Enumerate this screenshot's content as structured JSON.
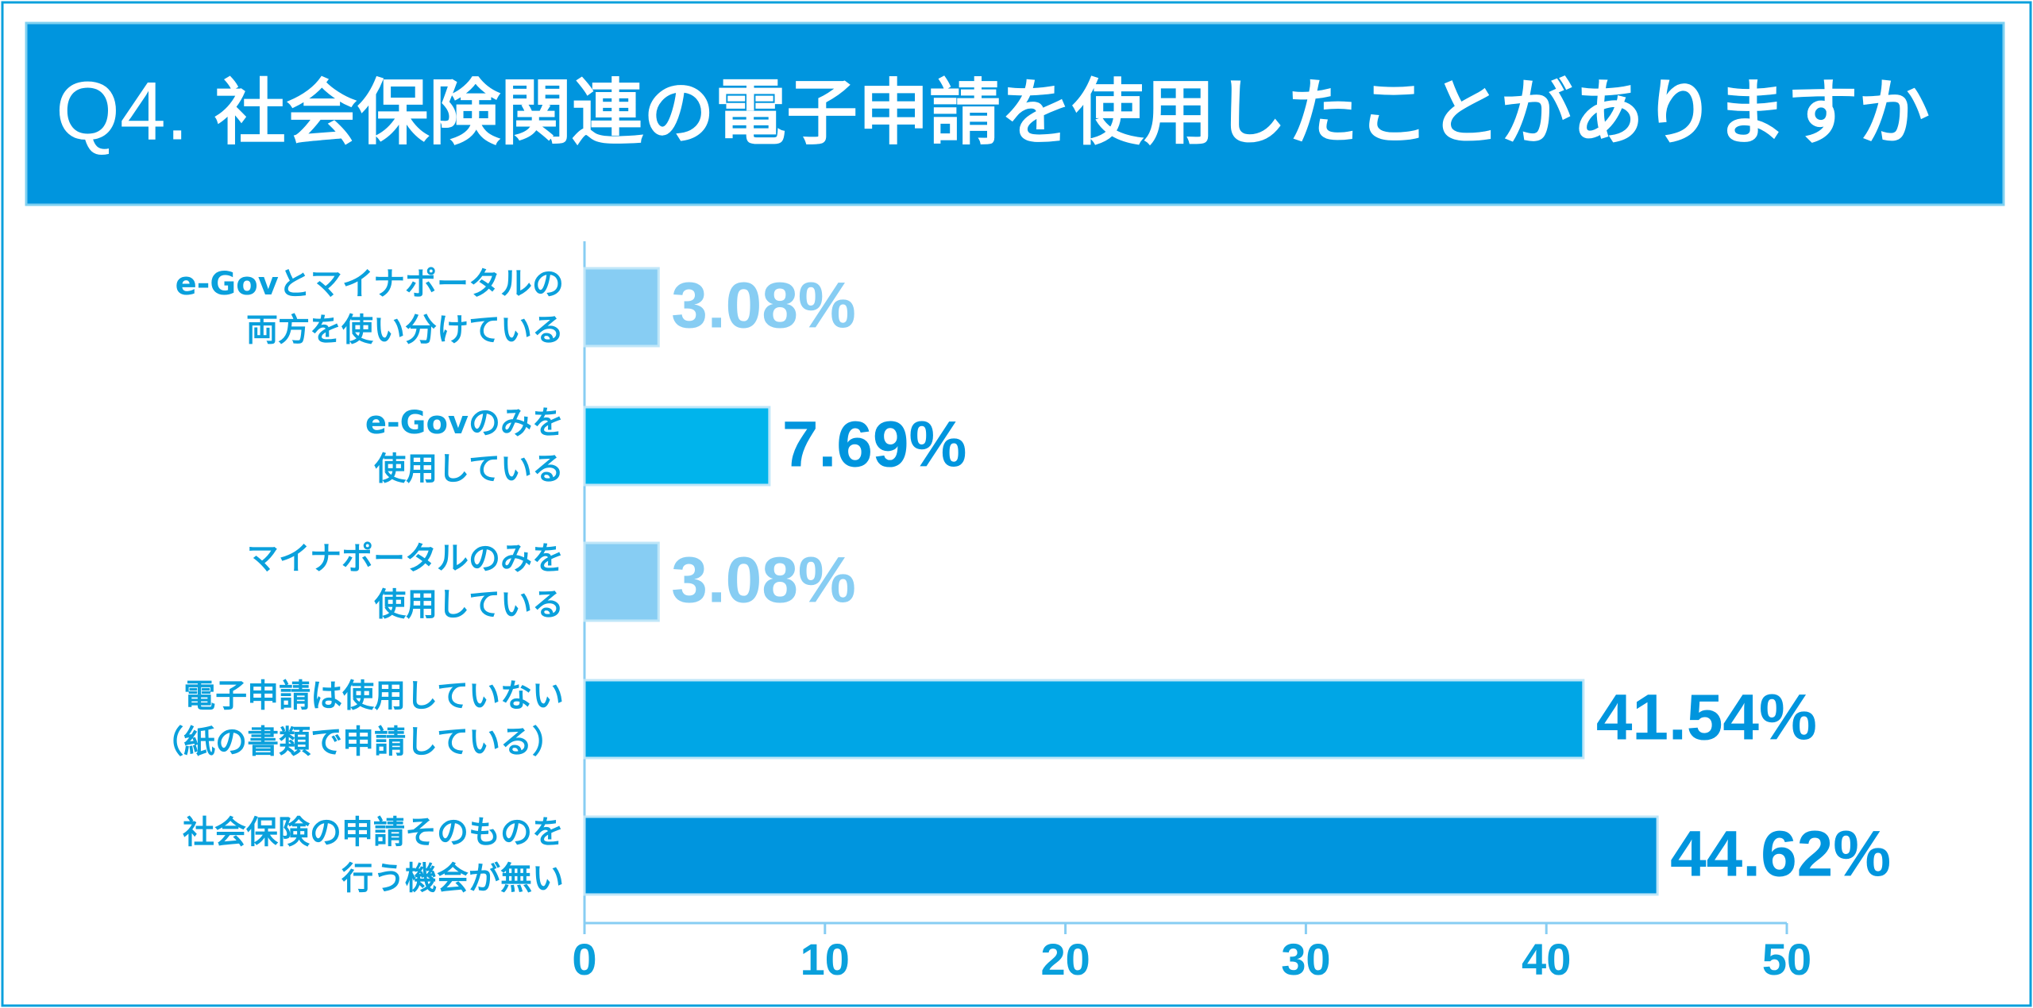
{
  "chart_data": {
    "type": "barh",
    "question_number": "Q4.",
    "title": "社会保険関連の電子申請を使用したことがありますか",
    "categories": [
      "e-Govとマイナポータルの\n両方を使い分けている",
      "e-Govのみを\n使用している",
      "マイナポータルのみを\n使用している",
      "電子申請は使用していない\n（紙の書類で申請している）",
      "社会保険の申請そのものを\n行う機会が無い"
    ],
    "values": [
      3.08,
      7.69,
      3.08,
      41.54,
      44.62
    ],
    "value_labels": [
      "3.08%",
      "7.69%",
      "3.08%",
      "41.54%",
      "44.62%"
    ],
    "colors": [
      "#87cdf3",
      "#00b4ec",
      "#87cdf3",
      "#00a6e6",
      "#0095de"
    ],
    "value_label_colors": [
      "#87cdf3",
      "#0095de",
      "#87cdf3",
      "#0095de",
      "#0095de"
    ],
    "xlim": [
      0,
      50
    ],
    "xticks": [
      0,
      10,
      20,
      30,
      40,
      50
    ]
  }
}
